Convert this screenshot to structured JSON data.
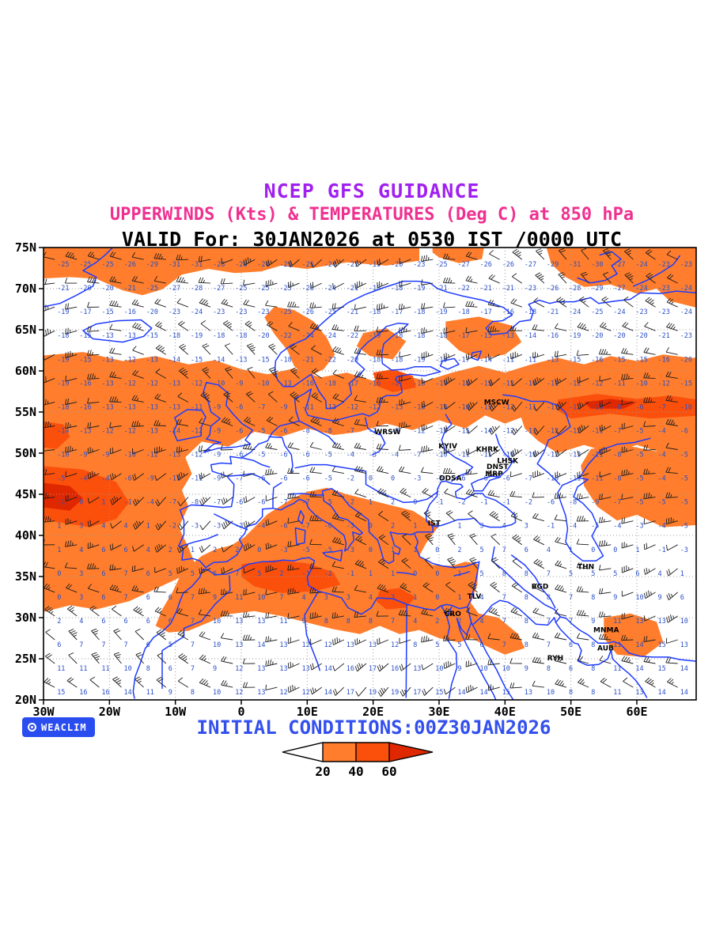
{
  "header": {
    "line1": "NCEP GFS GUIDANCE",
    "line2": "UPPERWINDS (Kts) & TEMPERATURES (Deg C) at 850 hPa",
    "line3": "VALID For: 30JAN2026 at 0530 IST /0000 UTC"
  },
  "axes": {
    "lat_ticks": [
      {
        "label": "75N",
        "value": 75
      },
      {
        "label": "70N",
        "value": 70
      },
      {
        "label": "65N",
        "value": 65
      },
      {
        "label": "60N",
        "value": 60
      },
      {
        "label": "55N",
        "value": 55
      },
      {
        "label": "50N",
        "value": 50
      },
      {
        "label": "45N",
        "value": 45
      },
      {
        "label": "40N",
        "value": 40
      },
      {
        "label": "35N",
        "value": 35
      },
      {
        "label": "30N",
        "value": 30
      },
      {
        "label": "25N",
        "value": 25
      },
      {
        "label": "20N",
        "value": 20
      }
    ],
    "lon_ticks": [
      {
        "label": "30W",
        "value": -30
      },
      {
        "label": "20W",
        "value": -20
      },
      {
        "label": "10W",
        "value": -10
      },
      {
        "label": "0",
        "value": 0
      },
      {
        "label": "10E",
        "value": 10
      },
      {
        "label": "20E",
        "value": 20
      },
      {
        "label": "30E",
        "value": 30
      },
      {
        "label": "40E",
        "value": 40
      },
      {
        "label": "50E",
        "value": 50
      },
      {
        "label": "60E",
        "value": 60
      }
    ]
  },
  "map": {
    "bounds": {
      "lon_min": -30,
      "lon_max": 69,
      "lat_min": 20,
      "lat_max": 75
    },
    "cities": [
      {
        "label": "MSCW",
        "lon": 36.8,
        "lat": 55.9
      },
      {
        "label": "WRSW",
        "lon": 20.2,
        "lat": 52.3
      },
      {
        "label": "KYIV",
        "lon": 29.9,
        "lat": 50.6
      },
      {
        "label": "KHRK",
        "lon": 35.6,
        "lat": 50.2
      },
      {
        "label": "LHSK",
        "lon": 38.8,
        "lat": 48.8
      },
      {
        "label": "DNST",
        "lon": 37.2,
        "lat": 48.1
      },
      {
        "label": "MRP",
        "lon": 37.0,
        "lat": 47.2
      },
      {
        "label": "ODSA",
        "lon": 30.0,
        "lat": 46.7
      },
      {
        "label": "IST",
        "lon": 28.3,
        "lat": 41.2
      },
      {
        "label": "THN",
        "lon": 51.0,
        "lat": 35.9
      },
      {
        "label": "BGD",
        "lon": 44.0,
        "lat": 33.5
      },
      {
        "label": "TLV",
        "lon": 34.3,
        "lat": 32.3
      },
      {
        "label": "CRO",
        "lon": 30.8,
        "lat": 30.2
      },
      {
        "label": "RYH",
        "lon": 46.4,
        "lat": 24.8
      },
      {
        "label": "MNMA",
        "lon": 53.4,
        "lat": 28.2
      },
      {
        "label": "AUB",
        "lon": 54.0,
        "lat": 26.0
      }
    ]
  },
  "legend": {
    "tick_labels": [
      "20",
      "40",
      "60"
    ],
    "segment_colors": [
      "#ffffff",
      "#ff7d2c",
      "#fb4f0c"
    ],
    "arrow_color": "#e02800"
  },
  "footer": {
    "brand": "WEACLIM",
    "initial_conditions": "INITIAL CONDITIONS:00Z30JAN2026"
  },
  "colors": {
    "title1": "#a020f0",
    "title2": "#f03090",
    "title3": "#000000",
    "coastline": "#1e3cff",
    "band_20_40": "#ff7d2c",
    "band_40_60": "#fb4f0c",
    "band_60_plus": "#e02800",
    "grid": "#999999",
    "frame": "#000000",
    "temp_text": "#2b50c8",
    "barb": "#1c1c1c",
    "footer_text": "#3350ee",
    "badge_bg": "#2a4df0",
    "city_text": "#000000"
  }
}
